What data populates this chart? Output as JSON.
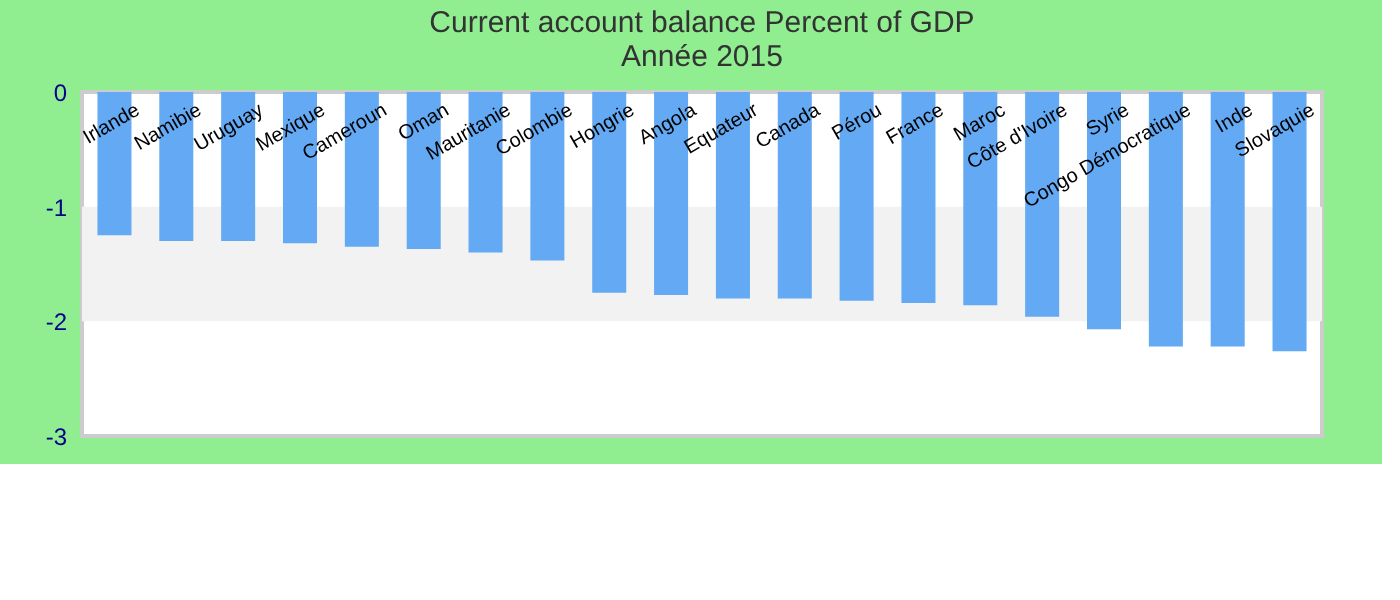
{
  "chart_data": {
    "type": "bar",
    "title": "Current account balance  Percent of GDP",
    "subtitle": "Année 2015",
    "categories": [
      "Irlande",
      "Namibie",
      "Uruguay",
      "Mexique",
      "Cameroun",
      "Oman",
      "Mauritanie",
      "Colombie",
      "Hongrie",
      "Angola",
      "Equateur",
      "Canada",
      "Pérou",
      "France",
      "Maroc",
      "Côte d'Ivoire",
      "Syrie",
      "Congo Démocratique",
      "Inde",
      "Slovaquie"
    ],
    "values": [
      -1.25,
      -1.3,
      -1.3,
      -1.32,
      -1.35,
      -1.37,
      -1.4,
      -1.47,
      -1.75,
      -1.77,
      -1.8,
      -1.8,
      -1.82,
      -1.84,
      -1.86,
      -1.96,
      -2.07,
      -2.22,
      -2.22,
      -2.26
    ],
    "color": "#63a9f3",
    "ylim": [
      -3,
      0
    ],
    "yticks": [
      0,
      -1,
      -2,
      -3
    ],
    "bands": [
      {
        "axis": "y",
        "from": -1,
        "to": -2,
        "color": "#f2f2f2"
      }
    ],
    "grid": false,
    "legend": false
  }
}
